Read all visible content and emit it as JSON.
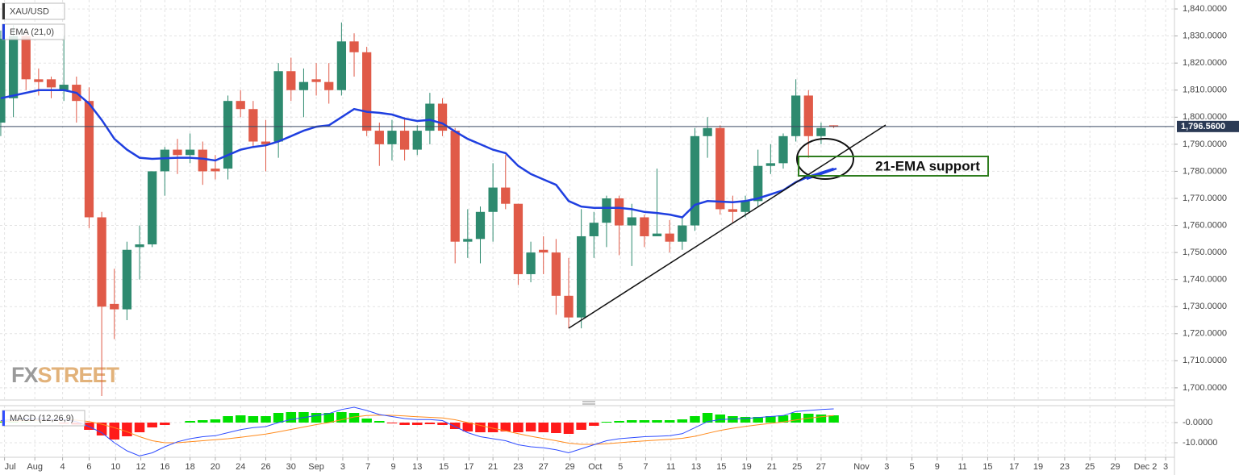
{
  "chart_data": [
    {
      "type": "candlestick",
      "title": "XAU/USD",
      "up_color": "#2e8a6f",
      "down_color": "#e05a48",
      "open": [
        1798,
        1807,
        1830,
        1814,
        1814,
        1810,
        1812,
        1806,
        1763,
        1731,
        1729,
        1752,
        1753,
        1780,
        1788,
        1786,
        1788,
        1781,
        1781,
        1806,
        1803,
        1791,
        1791,
        1817,
        1810,
        1814,
        1813,
        1810,
        1828,
        1824,
        1795,
        1790,
        1795,
        1788,
        1795,
        1805,
        1795,
        1754,
        1755,
        1765,
        1774,
        1768,
        1742,
        1751,
        1750,
        1734,
        1726,
        1756,
        1761,
        1770,
        1760,
        1763,
        1756,
        1757,
        1754,
        1760,
        1793,
        1796,
        1766,
        1765,
        1769,
        1782,
        1783,
        1793,
        1808,
        1793,
        1797
      ],
      "high": [
        1832,
        1834,
        1832,
        1818,
        1815,
        1830,
        1815,
        1811,
        1765,
        1744,
        1754,
        1760,
        1780,
        1789,
        1792,
        1794,
        1791,
        1786,
        1808,
        1810,
        1806,
        1799,
        1820,
        1822,
        1818,
        1820,
        1820,
        1835,
        1831,
        1826,
        1798,
        1799,
        1800,
        1797,
        1809,
        1807,
        1796,
        1766,
        1767,
        1783,
        1786,
        1768,
        1754,
        1756,
        1755,
        1748,
        1766,
        1765,
        1771,
        1771,
        1768,
        1764,
        1781,
        1762,
        1763,
        1796,
        1800,
        1797,
        1771,
        1771,
        1788,
        1790,
        1794,
        1814,
        1810,
        1798,
        1797
      ],
      "low": [
        1793,
        1800,
        1810,
        1808,
        1807,
        1806,
        1798,
        1759,
        1697,
        1718,
        1725,
        1740,
        1752,
        1771,
        1779,
        1783,
        1775,
        1777,
        1777,
        1800,
        1789,
        1780,
        1785,
        1806,
        1800,
        1808,
        1805,
        1808,
        1815,
        1793,
        1782,
        1784,
        1784,
        1786,
        1790,
        1793,
        1746,
        1748,
        1746,
        1754,
        1766,
        1738,
        1739,
        1742,
        1727,
        1722,
        1722,
        1748,
        1752,
        1749,
        1745,
        1752,
        1756,
        1750,
        1751,
        1758,
        1785,
        1764,
        1761,
        1763,
        1767,
        1779,
        1781,
        1791,
        1785,
        1790,
        1796
      ],
      "close": [
        1829,
        1830,
        1814,
        1813,
        1811,
        1812,
        1806,
        1763,
        1730,
        1729,
        1751,
        1753,
        1780,
        1788,
        1786,
        1788,
        1780,
        1780,
        1806,
        1803,
        1791,
        1790,
        1817,
        1810,
        1813,
        1813,
        1810,
        1828,
        1824,
        1795,
        1790,
        1795,
        1788,
        1795,
        1805,
        1795,
        1754,
        1755,
        1765,
        1774,
        1768,
        1742,
        1750,
        1750,
        1734,
        1726,
        1756,
        1761,
        1770,
        1760,
        1763,
        1756,
        1757,
        1754,
        1760,
        1793,
        1796,
        1766,
        1765,
        1769,
        1782,
        1783,
        1793,
        1808,
        1793,
        1796,
        1796.56
      ],
      "overlays": [
        {
          "name": "EMA (21,0)",
          "color": "#1f3fe0",
          "values": [
            1807,
            1808,
            1809,
            1810,
            1810,
            1810,
            1809,
            1805,
            1799,
            1792,
            1788,
            1785,
            1784.6,
            1784.8,
            1785,
            1785,
            1784.7,
            1784,
            1786,
            1788,
            1789,
            1789.6,
            1791,
            1793,
            1795,
            1796.5,
            1797,
            1800,
            1803,
            1802,
            1801.6,
            1801,
            1799.5,
            1798.6,
            1799,
            1797.7,
            1794.7,
            1792,
            1790,
            1788,
            1786.7,
            1782,
            1779,
            1777,
            1775,
            1769,
            1767,
            1766.5,
            1766.5,
            1766.5,
            1766,
            1765,
            1764.6,
            1764,
            1763,
            1767.6,
            1769,
            1768.8,
            1768.6,
            1769,
            1770,
            1771.5,
            1773,
            1776,
            1778,
            1779.5,
            1781
          ]
        }
      ],
      "last_price": {
        "value": 1796.56,
        "label": "1,796.5600"
      },
      "ylim": [
        1695.5,
        1843.3
      ],
      "yticks": [
        {
          "value": 1700,
          "label": "1,700.0000"
        },
        {
          "value": 1710,
          "label": "1,710.0000"
        },
        {
          "value": 1720,
          "label": "1,720.0000"
        },
        {
          "value": 1730,
          "label": "1,730.0000"
        },
        {
          "value": 1740,
          "label": "1,740.0000"
        },
        {
          "value": 1750,
          "label": "1,750.0000"
        },
        {
          "value": 1760,
          "label": "1,760.0000"
        },
        {
          "value": 1770,
          "label": "1,770.0000"
        },
        {
          "value": 1780,
          "label": "1,780.0000"
        },
        {
          "value": 1790,
          "label": "1,790.0000"
        },
        {
          "value": 1800,
          "label": "1,800.0000"
        },
        {
          "value": 1810,
          "label": "1,810.0000"
        },
        {
          "value": 1820,
          "label": "1,820.0000"
        },
        {
          "value": 1830,
          "label": "1,830.0000"
        },
        {
          "value": 1840,
          "label": "1,840.0000"
        }
      ],
      "grid": true,
      "annotation": "21-EMA support",
      "watermark": [
        "FX",
        "STREET"
      ]
    },
    {
      "type": "macd",
      "title": "MACD (12,26,9)",
      "histogram": {
        "up_color": "#00e000",
        "down_color": "#ff1a1a",
        "values": [
          0.5,
          0.3,
          0.2,
          0.1,
          0,
          -0.5,
          -1,
          -3.6,
          -6.4,
          -8.4,
          -6.8,
          -4.8,
          -2.4,
          -1.2,
          0,
          0.8,
          1.2,
          1.6,
          3.2,
          3.6,
          3.2,
          3.2,
          4.8,
          5.2,
          5.2,
          4.8,
          4.8,
          5.2,
          4.8,
          2,
          0.8,
          -0.4,
          -1.2,
          -1.2,
          -0.8,
          -1.2,
          -3.2,
          -4.4,
          -4.8,
          -4.8,
          -4.4,
          -4.8,
          -4.4,
          -4.8,
          -5.2,
          -5.6,
          -3.6,
          -1.6,
          0.4,
          0.8,
          1.2,
          1.2,
          1.2,
          1.2,
          1.6,
          3.2,
          4.8,
          4,
          3.2,
          2.8,
          2.8,
          3.2,
          3.6,
          4.8,
          4.4,
          4,
          3.6
        ]
      },
      "macd_line": {
        "color": "#2f4cff",
        "values": [
          1,
          1.5,
          2,
          1.8,
          1.5,
          1.5,
          0.5,
          -2,
          -5,
          -10,
          -14,
          -16.5,
          -15,
          -12,
          -9.5,
          -8,
          -7,
          -6.5,
          -5,
          -3.5,
          -2.5,
          -2,
          0,
          1.5,
          2.5,
          3.5,
          4.5,
          6.5,
          7.6,
          6,
          4,
          3,
          2,
          1.5,
          1.5,
          1,
          -2,
          -5,
          -7,
          -8,
          -9,
          -11,
          -12,
          -12.5,
          -13.5,
          -15,
          -13,
          -11,
          -9,
          -8,
          -7.5,
          -7,
          -6.8,
          -6.5,
          -5.5,
          -2.5,
          0.5,
          1.5,
          1.8,
          2,
          2.5,
          3,
          3.5,
          5.5,
          6,
          6.5,
          6.8
        ]
      },
      "signal_line": {
        "color": "#ff8a1c",
        "values": [
          0.5,
          0.8,
          1,
          1.2,
          1.2,
          1.3,
          1.2,
          0.5,
          -0.8,
          -2.5,
          -4.5,
          -7,
          -9,
          -10,
          -10,
          -9.5,
          -9,
          -8.5,
          -8,
          -7.3,
          -6.5,
          -5.7,
          -4.6,
          -3.4,
          -2.2,
          -1,
          0,
          1.4,
          2.8,
          3.5,
          3.7,
          3.6,
          3.3,
          2.9,
          2.6,
          2.3,
          1.4,
          0,
          -1.4,
          -2.8,
          -4.1,
          -5.5,
          -6.8,
          -7.9,
          -9,
          -10.2,
          -10.8,
          -10.8,
          -10.5,
          -10,
          -9.5,
          -9.1,
          -8.7,
          -8.3,
          -7.8,
          -6.8,
          -5.3,
          -3.9,
          -2.8,
          -1.9,
          -1.1,
          -0.4,
          0.3,
          1.3,
          2.2,
          2.9,
          3.5
        ]
      },
      "ylim": [
        -17.2,
        8.4
      ],
      "yticks": [
        {
          "value": 0,
          "label": "-0.0000"
        },
        {
          "value": -10,
          "label": "-10.0000"
        }
      ],
      "xlim": [
        -0.06,
        93
      ],
      "xticks": [
        {
          "value": 0.3,
          "label": "Jul"
        },
        {
          "value": 2.7,
          "label": "Aug"
        },
        {
          "value": 4.9,
          "label": "4"
        },
        {
          "value": 7.0,
          "label": "6"
        },
        {
          "value": 9.1,
          "label": "10"
        },
        {
          "value": 11.1,
          "label": "12"
        },
        {
          "value": 13.0,
          "label": "16"
        },
        {
          "value": 15.0,
          "label": "18"
        },
        {
          "value": 17.0,
          "label": "20"
        },
        {
          "value": 19.0,
          "label": "24"
        },
        {
          "value": 21.0,
          "label": "26"
        },
        {
          "value": 23.0,
          "label": "30"
        },
        {
          "value": 25.0,
          "label": "Sep"
        },
        {
          "value": 27.1,
          "label": "3"
        },
        {
          "value": 29.1,
          "label": "7"
        },
        {
          "value": 31.1,
          "label": "9"
        },
        {
          "value": 33.0,
          "label": "13"
        },
        {
          "value": 35.1,
          "label": "15"
        },
        {
          "value": 37.1,
          "label": "17"
        },
        {
          "value": 39.0,
          "label": "21"
        },
        {
          "value": 41.0,
          "label": "23"
        },
        {
          "value": 43.0,
          "label": "27"
        },
        {
          "value": 45.1,
          "label": "29"
        },
        {
          "value": 47.1,
          "label": "Oct"
        },
        {
          "value": 49.1,
          "label": "5"
        },
        {
          "value": 51.1,
          "label": "7"
        },
        {
          "value": 53.1,
          "label": "11"
        },
        {
          "value": 55.1,
          "label": "13"
        },
        {
          "value": 57.1,
          "label": "15"
        },
        {
          "value": 59.1,
          "label": "19"
        },
        {
          "value": 61.1,
          "label": "21"
        },
        {
          "value": 63.1,
          "label": "25"
        },
        {
          "value": 65.0,
          "label": "27"
        },
        {
          "value": 68.2,
          "label": "Nov"
        },
        {
          "value": 70.2,
          "label": "3"
        },
        {
          "value": 72.2,
          "label": "5"
        },
        {
          "value": 74.2,
          "label": "9"
        },
        {
          "value": 76.2,
          "label": "11"
        },
        {
          "value": 78.2,
          "label": "15"
        },
        {
          "value": 80.3,
          "label": "17"
        },
        {
          "value": 82.2,
          "label": "19"
        },
        {
          "value": 84.3,
          "label": "23"
        },
        {
          "value": 86.3,
          "label": "25"
        },
        {
          "value": 88.3,
          "label": "29"
        },
        {
          "value": 90.7,
          "label": "Dec 2"
        },
        {
          "value": 92.3,
          "label": "3"
        }
      ],
      "grid": true
    }
  ]
}
